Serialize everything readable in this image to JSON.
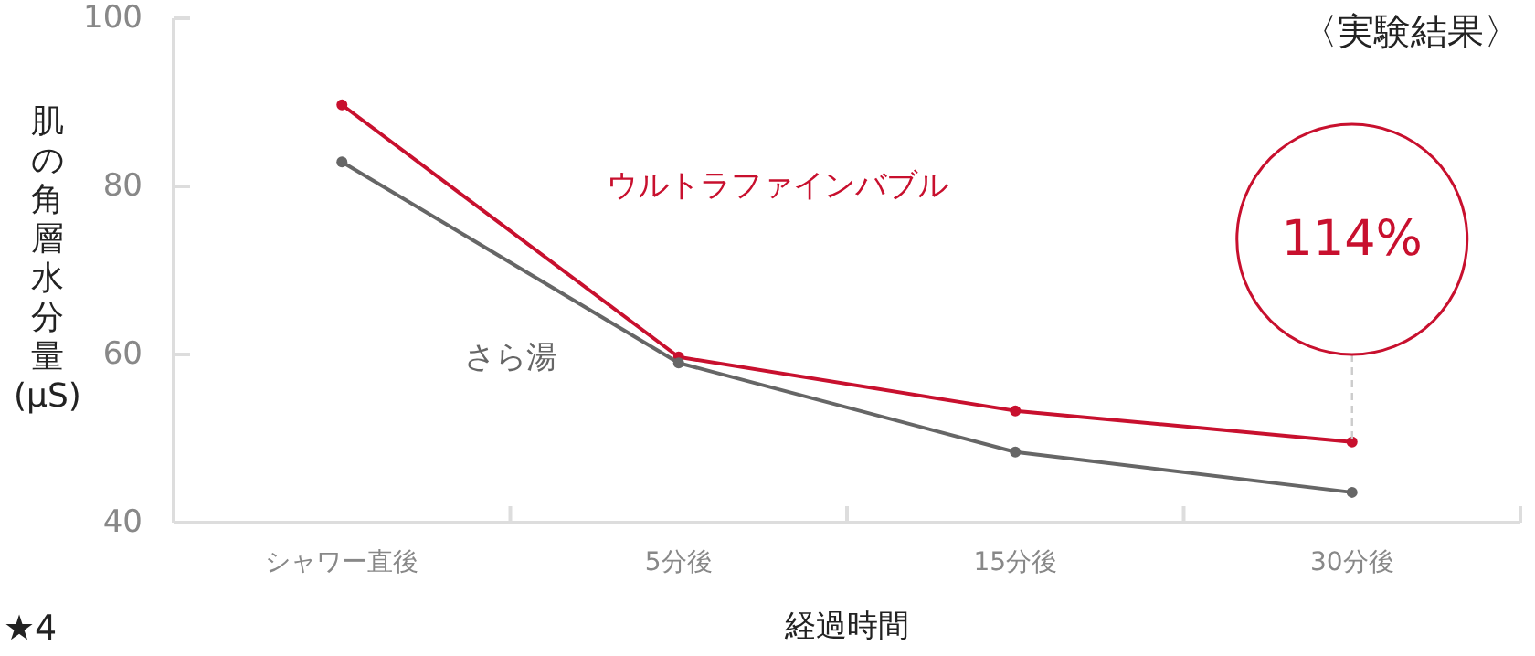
{
  "chart_data": {
    "type": "line",
    "title": "〈実験結果〉",
    "xlabel": "経過時間",
    "ylabel": "肌の角層水分量(μS)",
    "categories": [
      "シャワー直後",
      "5分後",
      "15分後",
      "30分後"
    ],
    "series": [
      {
        "name": "ウルトラファインバブル",
        "color": "#c8102e",
        "values": [
          89.7,
          59.7,
          53.3,
          49.6
        ]
      },
      {
        "name": "さら湯",
        "color": "#666666",
        "values": [
          82.9,
          59.0,
          48.4,
          43.6
        ]
      }
    ],
    "ylim": [
      40,
      100
    ],
    "yticks": [
      40,
      60,
      80,
      100
    ],
    "grid": false,
    "legend": false,
    "marker": "circle",
    "line_style": "solid",
    "annotations": [
      "114%",
      "★4"
    ]
  }
}
